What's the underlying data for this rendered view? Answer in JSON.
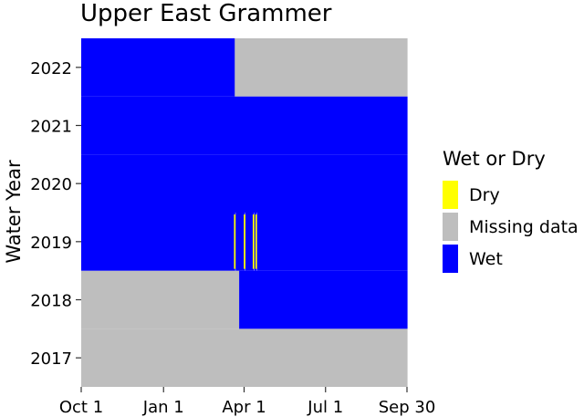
{
  "chart_data": {
    "type": "heatmap",
    "title": "Upper East Grammer",
    "xlabel": "",
    "ylabel": "Water Year",
    "x_ticks": [
      "Oct 1",
      "Jan 1",
      "Apr 1",
      "Jul 1",
      "Sep 30"
    ],
    "x_tick_days": [
      0,
      92,
      182,
      273,
      364
    ],
    "x_range_days": [
      0,
      364
    ],
    "y_categories": [
      "2017",
      "2018",
      "2019",
      "2020",
      "2021",
      "2022"
    ],
    "legend_title": "Wet or Dry",
    "legend": [
      {
        "label": "Dry",
        "color": "#ffff00"
      },
      {
        "label": "Missing data",
        "color": "#bebebe"
      },
      {
        "label": "Wet",
        "color": "#0000ff"
      }
    ],
    "grid": false,
    "legend_position": "right",
    "series": [
      {
        "year": "2017",
        "segments": [
          {
            "start": "Oct 1",
            "end": "Sep 30",
            "status": "Missing data"
          }
        ]
      },
      {
        "year": "2018",
        "segments": [
          {
            "start": "Oct 1",
            "end": "Mar 26",
            "status": "Missing data"
          },
          {
            "start": "Mar 27",
            "end": "Sep 30",
            "status": "Wet"
          }
        ]
      },
      {
        "year": "2019",
        "segments": [
          {
            "start": "Oct 1",
            "end": "Mar 21",
            "status": "Wet"
          },
          {
            "start": "Mar 22",
            "end": "Mar 22",
            "status": "Dry"
          },
          {
            "start": "Mar 23",
            "end": "Apr 1",
            "status": "Wet"
          },
          {
            "start": "Apr 2",
            "end": "Apr 2",
            "status": "Dry"
          },
          {
            "start": "Apr 3",
            "end": "Apr 11",
            "status": "Wet"
          },
          {
            "start": "Apr 12",
            "end": "Apr 12",
            "status": "Dry"
          },
          {
            "start": "Apr 13",
            "end": "Apr 14",
            "status": "Wet"
          },
          {
            "start": "Apr 15",
            "end": "Apr 15",
            "status": "Dry"
          },
          {
            "start": "Apr 16",
            "end": "Sep 30",
            "status": "Wet"
          }
        ]
      },
      {
        "year": "2020",
        "segments": [
          {
            "start": "Oct 1",
            "end": "Sep 30",
            "status": "Wet"
          }
        ]
      },
      {
        "year": "2021",
        "segments": [
          {
            "start": "Oct 1",
            "end": "Sep 30",
            "status": "Wet"
          }
        ]
      },
      {
        "year": "2022",
        "segments": [
          {
            "start": "Oct 1",
            "end": "Mar 21",
            "status": "Wet"
          },
          {
            "start": "Mar 22",
            "end": "Sep 30",
            "status": "Missing data"
          }
        ]
      }
    ]
  }
}
